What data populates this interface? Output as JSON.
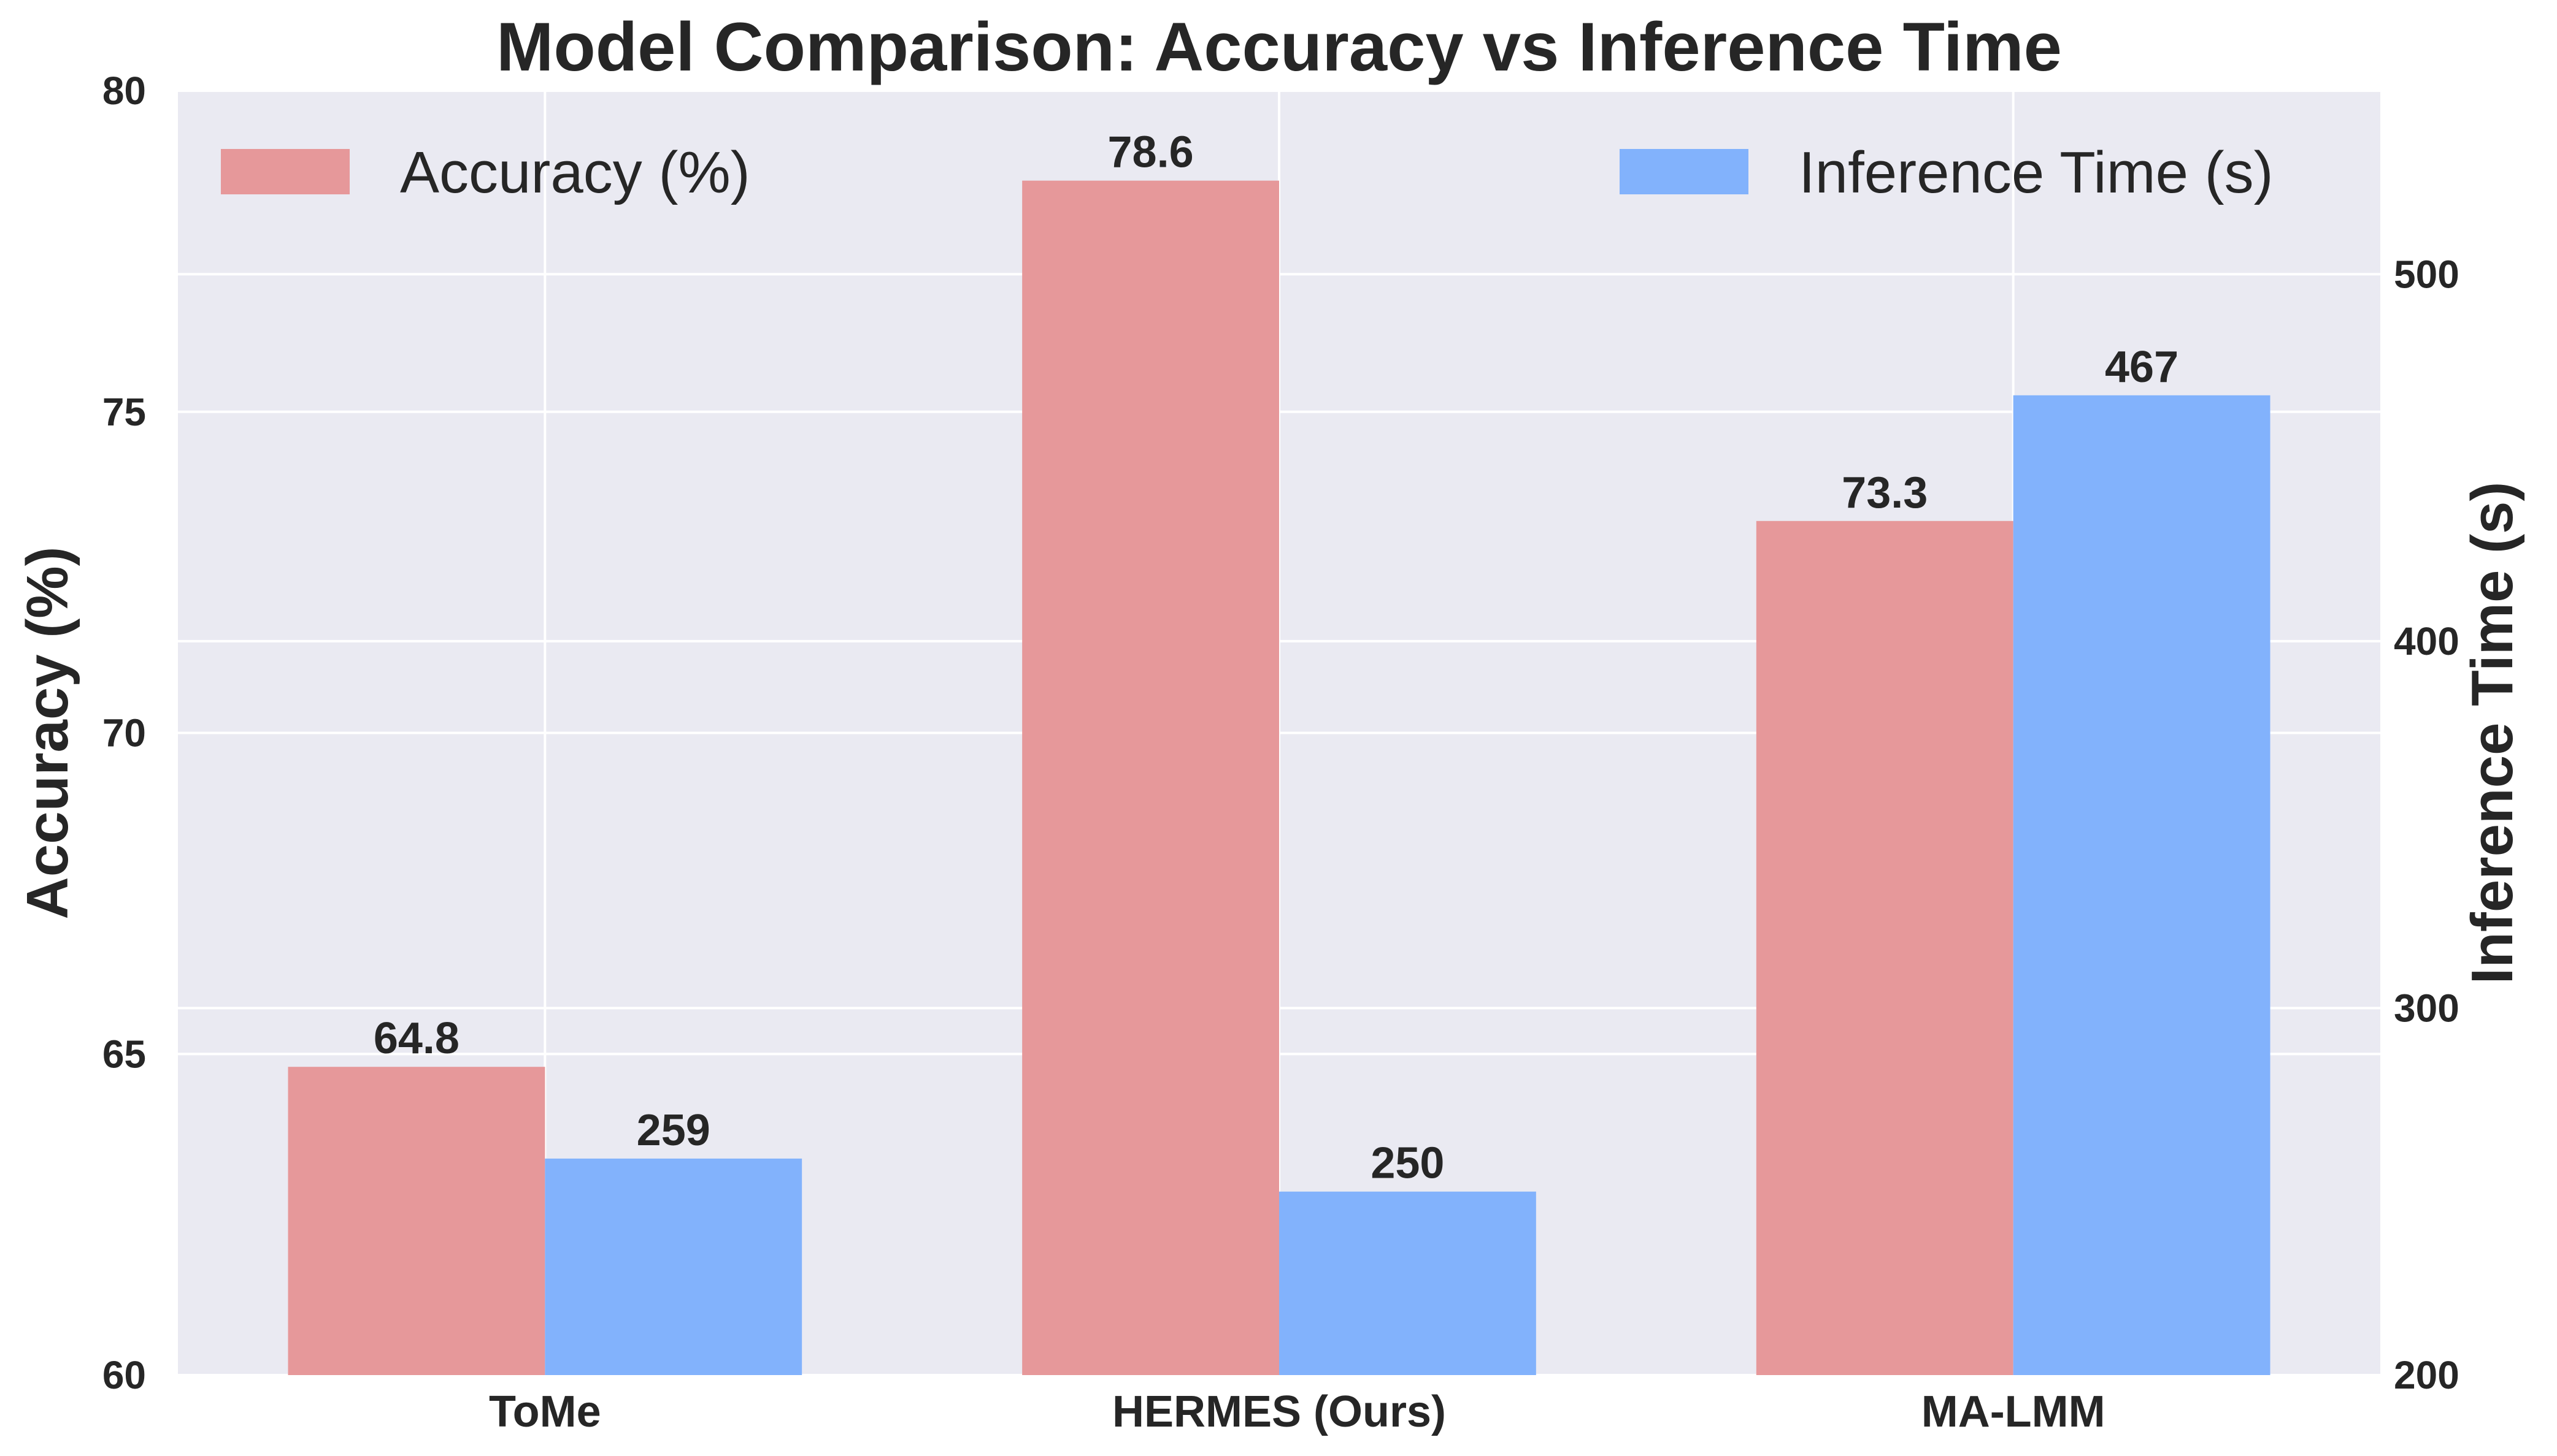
{
  "chart_data": {
    "type": "bar",
    "title": "Model Comparison: Accuracy vs Inference Time",
    "categories": [
      "ToMe",
      "HERMES (Ours)",
      "MA-LMM"
    ],
    "series": [
      {
        "name": "Accuracy (%)",
        "axis": "left",
        "values": [
          64.8,
          78.6,
          73.3
        ],
        "labels": [
          "64.8",
          "78.6",
          "73.3"
        ],
        "color": "#e6989a"
      },
      {
        "name": "Inference Time (s)",
        "axis": "right",
        "values": [
          259,
          250,
          467
        ],
        "labels": [
          "259",
          "250",
          "467"
        ],
        "color": "#82b2fc"
      }
    ],
    "y_left": {
      "label": "Accuracy (%)",
      "ylim": [
        60,
        80
      ],
      "ticks": [
        60,
        65,
        70,
        75,
        80
      ],
      "tick_labels": [
        "60",
        "65",
        "70",
        "75",
        "80"
      ]
    },
    "y_right": {
      "label": "Inference Time (s)",
      "ylim": [
        200,
        550
      ],
      "ticks": [
        200,
        300,
        400,
        500
      ],
      "tick_labels": [
        "200",
        "300",
        "400",
        "500"
      ]
    },
    "grid": true,
    "legend": [
      {
        "placement": "top-left",
        "series": "Accuracy (%)"
      },
      {
        "placement": "top-right",
        "series": "Inference Time (s)"
      }
    ],
    "background_color": "#eaeaf2",
    "grid_color": "#ffffff"
  }
}
